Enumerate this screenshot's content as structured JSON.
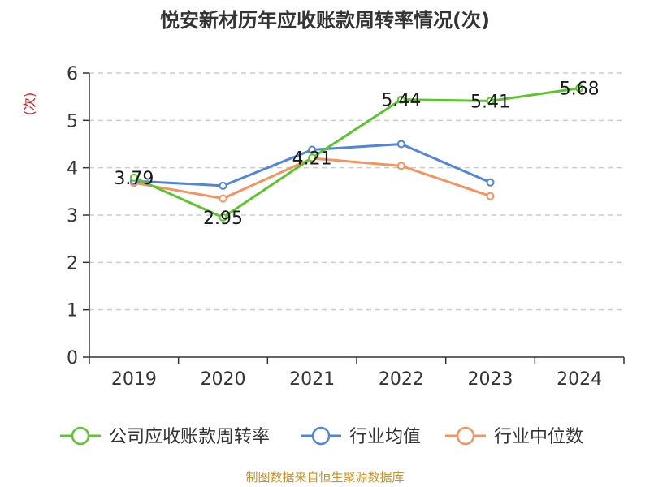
{
  "chart_data": {
    "type": "line",
    "title": "悦安新材历年应收账款周转率情况(次)",
    "ylabel": "(次)",
    "xlabel": "",
    "categories": [
      "2019",
      "2020",
      "2021",
      "2022",
      "2023",
      "2024"
    ],
    "ylim": [
      0,
      6
    ],
    "yticks": [
      "0",
      "1",
      "2",
      "3",
      "4",
      "5",
      "6"
    ],
    "grid": true,
    "legend_position": "bottom",
    "series": [
      {
        "name": "公司应收账款周转率",
        "color": "#5cc42c",
        "values": [
          3.79,
          2.95,
          4.21,
          5.44,
          5.41,
          5.68
        ],
        "labels": [
          "3.79",
          "2.95",
          "4.21",
          "5.44",
          "5.41",
          "5.68"
        ]
      },
      {
        "name": "行业均值",
        "color": "#4f86d8",
        "values": [
          3.72,
          3.62,
          4.38,
          4.5,
          3.69,
          null
        ]
      },
      {
        "name": "行业中位数",
        "color": "#f5935f",
        "values": [
          3.68,
          3.35,
          4.2,
          4.04,
          3.4,
          null
        ]
      }
    ],
    "source": "制图数据来自恒生聚源数据库"
  }
}
